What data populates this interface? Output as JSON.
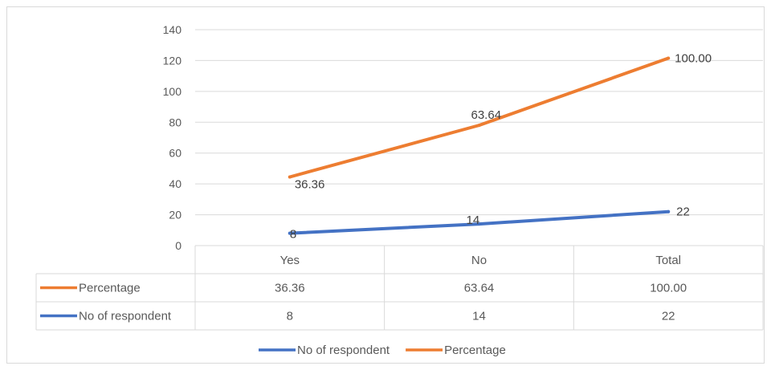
{
  "chart_data": {
    "type": "line",
    "categories": [
      "Yes",
      "No",
      "Total"
    ],
    "series": [
      {
        "name": "Percentage",
        "values": [
          36.36,
          63.64,
          100.0
        ],
        "plot_values": [
          44.5,
          78,
          121.5
        ],
        "labels": [
          "36.36",
          "63.64",
          "100.00"
        ],
        "color": "#ED7D31"
      },
      {
        "name": "No of respondent",
        "values": [
          8,
          14,
          22
        ],
        "labels": [
          "8",
          "14",
          "22"
        ],
        "color": "#4472C4"
      }
    ],
    "ylim": [
      0,
      140
    ],
    "yticks": [
      "0",
      "20",
      "40",
      "60",
      "80",
      "100",
      "120",
      "140"
    ],
    "grid": true,
    "data_table": {
      "rows": [
        {
          "name": "Percentage",
          "color": "#ED7D31",
          "cells": [
            "36.36",
            "63.64",
            "100.00"
          ]
        },
        {
          "name": "No of respondent",
          "color": "#4472C4",
          "cells": [
            "8",
            "14",
            "22"
          ]
        }
      ]
    },
    "legend": {
      "position": "bottom",
      "items": [
        {
          "name": "No of respondent",
          "color": "#4472C4"
        },
        {
          "name": "Percentage",
          "color": "#ED7D31"
        }
      ]
    }
  }
}
